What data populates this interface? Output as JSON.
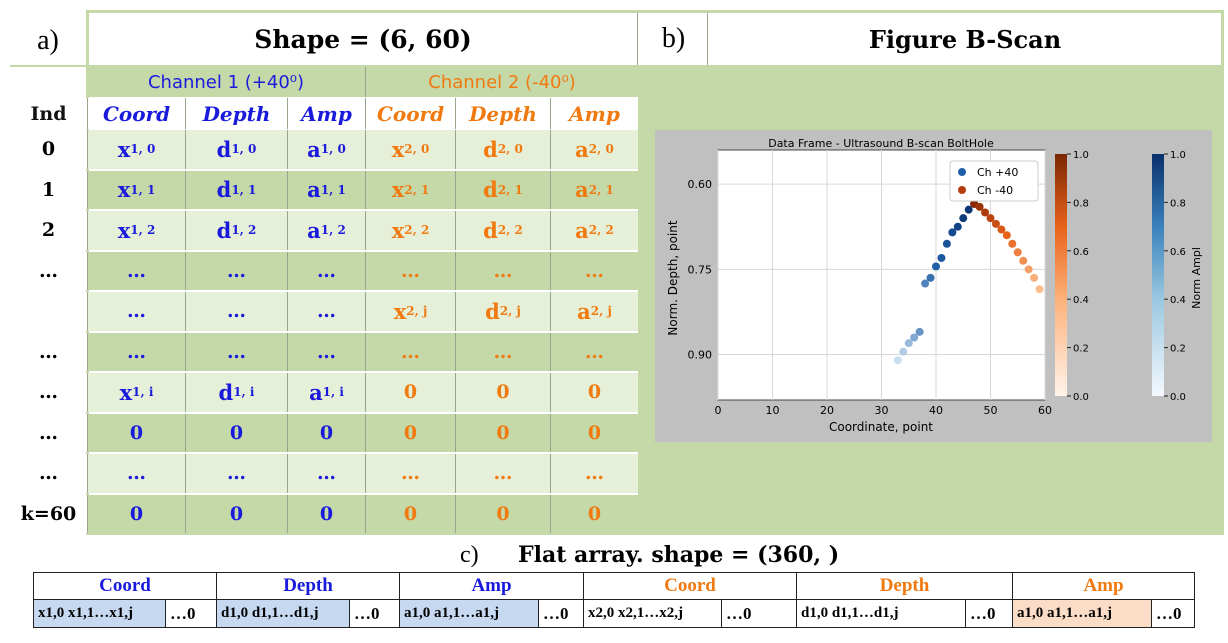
{
  "panel_a": {
    "label": "a)",
    "title": "Shape = (6, 60)",
    "channel1": "Channel 1  (+40⁰)",
    "channel2": "Channel 2  (-40⁰)",
    "col_headers": [
      "Ind",
      "Coord",
      "Depth",
      "Amp",
      "Coord",
      "Depth",
      "Amp"
    ],
    "rows": [
      {
        "ind": "0",
        "c1": [
          "x 1, 0",
          "d 1, 0",
          "a 1, 0"
        ],
        "c2": [
          "x 2, 0",
          "d 2, 0",
          "a 2, 0"
        ]
      },
      {
        "ind": "1",
        "c1": [
          "x 1, 1",
          "d 1, 1",
          "a 1, 1"
        ],
        "c2": [
          "x 2, 1",
          "d 2, 1",
          "a 2, 1"
        ]
      },
      {
        "ind": "2",
        "c1": [
          "x 1, 2",
          "d 1, 2",
          "a 1, 2"
        ],
        "c2": [
          "x 2, 2",
          "d 2, 2",
          "a 2, 2"
        ]
      },
      {
        "ind": "…",
        "c1": [
          "…",
          "…",
          "…"
        ],
        "c2": [
          "…",
          "…",
          "…"
        ]
      },
      {
        "ind": "",
        "c1": [
          "…",
          "…",
          "…"
        ],
        "c2": [
          "x 2, j",
          "d 2, j",
          "a 2, j"
        ]
      },
      {
        "ind": "…",
        "c1": [
          "…",
          "…",
          "…"
        ],
        "c2": [
          "…",
          "…",
          "…"
        ]
      },
      {
        "ind": "…",
        "c1": [
          "x 1, i",
          "d 1, i",
          "a 1, i"
        ],
        "c2": [
          "0",
          "0",
          "0"
        ]
      },
      {
        "ind": "…",
        "c1": [
          "0",
          "0",
          "0"
        ],
        "c2": [
          "0",
          "0",
          "0"
        ]
      },
      {
        "ind": "…",
        "c1": [
          "…",
          "…",
          "…"
        ],
        "c2": [
          "…",
          "…",
          "…"
        ]
      },
      {
        "ind": "k=60",
        "c1": [
          "0",
          "0",
          "0"
        ],
        "c2": [
          "0",
          "0",
          "0"
        ]
      }
    ]
  },
  "panel_b": {
    "label": "b)",
    "title": "Figure  B-Scan"
  },
  "chart_data": {
    "type": "scatter",
    "title": "Data Frame - Ultrasound B-scan BoltHole",
    "xlabel": "Coordinate, point",
    "ylabel": "Norm. Depth, point",
    "xlim": [
      0,
      60
    ],
    "ylim": [
      0.98,
      0.54
    ],
    "x_ticks": [
      "0",
      "10",
      "20",
      "30",
      "40",
      "50",
      "60"
    ],
    "y_ticks": [
      "0.60",
      "0.75",
      "0.90"
    ],
    "grid": true,
    "legend_position": "top-right",
    "series": [
      {
        "name": "Ch +40",
        "color": "#1f5fa8",
        "x": [
          33,
          34,
          35,
          36,
          37,
          38,
          39,
          40,
          41,
          42,
          43,
          44,
          45,
          46,
          47
        ],
        "y": [
          0.91,
          0.895,
          0.88,
          0.87,
          0.86,
          0.775,
          0.765,
          0.745,
          0.73,
          0.705,
          0.685,
          0.675,
          0.66,
          0.645,
          0.635
        ]
      },
      {
        "name": "Ch -40",
        "color": "#b83d0c",
        "x": [
          47,
          48,
          49,
          50,
          51,
          52,
          53,
          54,
          55,
          56,
          57,
          58,
          59
        ],
        "y": [
          0.635,
          0.64,
          0.65,
          0.66,
          0.67,
          0.68,
          0.69,
          0.705,
          0.72,
          0.735,
          0.75,
          0.765,
          0.785
        ]
      }
    ],
    "colorbars": [
      {
        "label": "",
        "ticks": [
          "1.0",
          "0.8",
          "0.6",
          "0.4",
          "0.2",
          "0.0"
        ],
        "from": "#fff3eb",
        "to": "#7a2604"
      },
      {
        "label": "Norm Ampl",
        "ticks": [
          "1.0",
          "0.8",
          "0.6",
          "0.4",
          "0.2",
          "0.0"
        ],
        "from": "#f4f9ff",
        "to": "#08306b"
      }
    ]
  },
  "panel_c": {
    "label": "c)",
    "title": "Flat array.  shape = (360, )",
    "headers": [
      "Coord",
      "Depth",
      "Amp",
      "Coord",
      "Depth",
      "Amp"
    ],
    "cells": [
      "x1,0 x1,1…x1,j",
      "d1,0 d1,1…d1,j",
      "a1,0 a1,1…a1,j",
      "x2,0 x2,1…x2,j",
      "d1,0 d1,1…d1,j",
      "a1,0 a1,1…a1,j"
    ],
    "tail": "…0",
    "colors": {
      "blue": "#1a1adc",
      "orange": "#f07a10",
      "blue_fill": "#c6d9f0",
      "orange_fill": "#fbdcc6"
    }
  }
}
